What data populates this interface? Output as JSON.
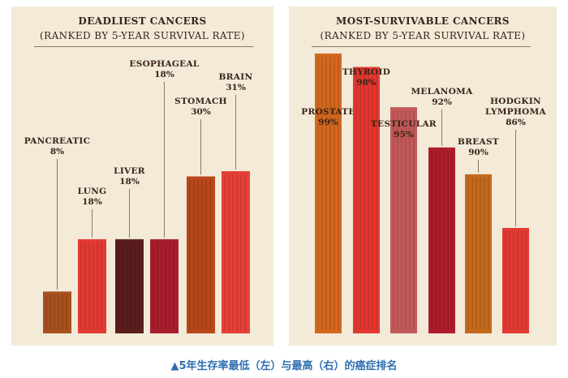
{
  "chart_data": [
    {
      "type": "bar",
      "title": "DEADLIEST CANCERS",
      "subtitle": "(RANKED BY 5-YEAR SURVIVAL RATE)",
      "categories": [
        "PANCREATIC",
        "LUNG",
        "LIVER",
        "ESOPHAGEAL",
        "STOMACH",
        "BRAIN"
      ],
      "values": [
        8,
        18,
        18,
        18,
        30,
        31
      ],
      "value_labels": [
        "8%",
        "18%",
        "18%",
        "18%",
        "30%",
        "31%"
      ],
      "unit": "%",
      "colors": [
        "#a8511e",
        "#e23b33",
        "#5a1e1c",
        "#a81d2d",
        "#b8471a",
        "#e64037"
      ]
    },
    {
      "type": "bar",
      "title": "MOST-SURVIVABLE CANCERS",
      "subtitle": "(RANKED BY 5-YEAR SURVIVAL RATE)",
      "categories": [
        "PROSTATE",
        "THYROID",
        "TESTICULAR",
        "MELANOMA",
        "BREAST",
        "HODGKIN LYMPHOMA"
      ],
      "values": [
        99,
        98,
        95,
        92,
        90,
        86
      ],
      "value_labels": [
        "99%",
        "98%",
        "95%",
        "92%",
        "90%",
        "86%"
      ],
      "unit": "%",
      "colors": [
        "#d4681e",
        "#e4382f",
        "#c35a5a",
        "#ad1d2c",
        "#c46a1c",
        "#e23b33"
      ]
    }
  ],
  "caption": "▲5年生存率最低（左）与最高（右）的癌症排名"
}
